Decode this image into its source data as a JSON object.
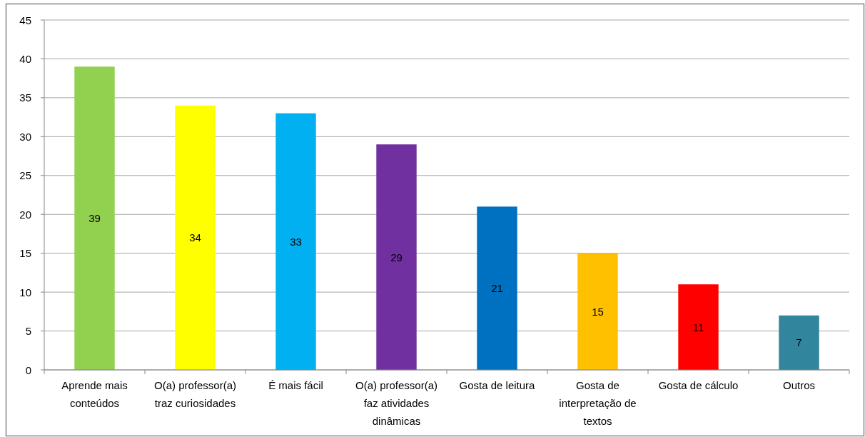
{
  "chart_data": {
    "type": "bar",
    "categories": [
      "Aprende mais conteúdos",
      "O(a) professor(a) traz curiosidades",
      "É mais fácil",
      "O(a) professor(a) faz atividades dinâmicas",
      "Gosta de leitura",
      "Gosta de interpretação de textos",
      "Gosta de cálculo",
      "Outros"
    ],
    "values": [
      39,
      34,
      33,
      29,
      21,
      15,
      11,
      7
    ],
    "colors": [
      "#92d050",
      "#ffff00",
      "#00b0f0",
      "#7030a0",
      "#0070c0",
      "#ffc000",
      "#ff0000",
      "#31859c"
    ],
    "ylim": [
      0,
      45
    ],
    "yticks": [
      0,
      5,
      10,
      15,
      20,
      25,
      30,
      35,
      40,
      45
    ],
    "grid": "y",
    "data_labels": true
  }
}
